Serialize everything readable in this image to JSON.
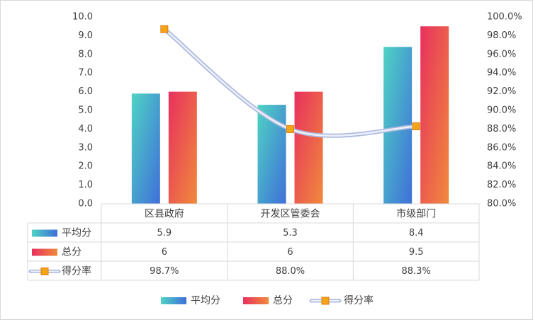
{
  "chart_data": {
    "type": "bar",
    "categories": [
      "区县政府",
      "开发区管委会",
      "市级部门"
    ],
    "series": [
      {
        "name": "平均分",
        "kind": "bar",
        "axis": "left",
        "values": [
          5.9,
          5.3,
          8.4
        ],
        "value_labels": [
          "5.9",
          "5.3",
          "8.4"
        ],
        "colors": [
          "#4fd3c4",
          "#3f6fd8"
        ]
      },
      {
        "name": "总分",
        "kind": "bar",
        "axis": "left",
        "values": [
          6,
          6,
          9.5
        ],
        "value_labels": [
          "6",
          "6",
          "9.5"
        ],
        "colors": [
          "#e8305e",
          "#f08a3c"
        ]
      },
      {
        "name": "得分率",
        "kind": "line",
        "axis": "right",
        "values": [
          98.7,
          88.0,
          88.3
        ],
        "value_labels": [
          "98.7%",
          "88.0%",
          "88.3%"
        ],
        "colors": [
          "#c9d3ec",
          "#f2a516"
        ]
      }
    ],
    "y_left": {
      "min": 0,
      "max": 10,
      "step": 1,
      "tick_labels": [
        "0.0",
        "1.0",
        "2.0",
        "3.0",
        "4.0",
        "5.0",
        "6.0",
        "7.0",
        "8.0",
        "9.0",
        "10.0"
      ]
    },
    "y_right": {
      "min": 80,
      "max": 100,
      "step": 2,
      "tick_labels": [
        "80.0%",
        "82.0%",
        "84.0%",
        "86.0%",
        "88.0%",
        "90.0%",
        "92.0%",
        "94.0%",
        "96.0%",
        "98.0%",
        "100.0%"
      ]
    },
    "grid": false,
    "data_table": true,
    "legend": "bottom",
    "title": "",
    "xlabel": "",
    "ylabel": ""
  }
}
